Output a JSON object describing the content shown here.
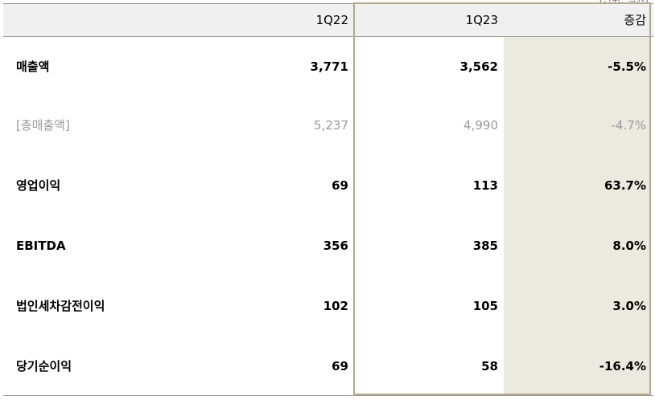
{
  "unit_note": "(단위: 억원)",
  "columns": [
    "1Q22",
    "1Q23",
    "증감"
  ],
  "rows": [
    {
      "label": "매출액",
      "v1": "3,771",
      "v2": "3,562",
      "chg": "-5.5%"
    },
    {
      "label": "[총매출액]",
      "v1": "5,237",
      "v2": "4,990",
      "chg": "-4.7%"
    },
    {
      "label": "영업이익",
      "v1": "69",
      "v2": "113",
      "chg": "63.7%"
    },
    {
      "label": "EBITDA",
      "v1": "356",
      "v2": "385",
      "chg": "8.0%"
    },
    {
      "label": "법인세차감전이익",
      "v1": "102",
      "v2": "105",
      "chg": "3.0%"
    },
    {
      "label": "당기순이익",
      "v1": "69",
      "v2": "58",
      "chg": "-16.4%"
    }
  ]
}
